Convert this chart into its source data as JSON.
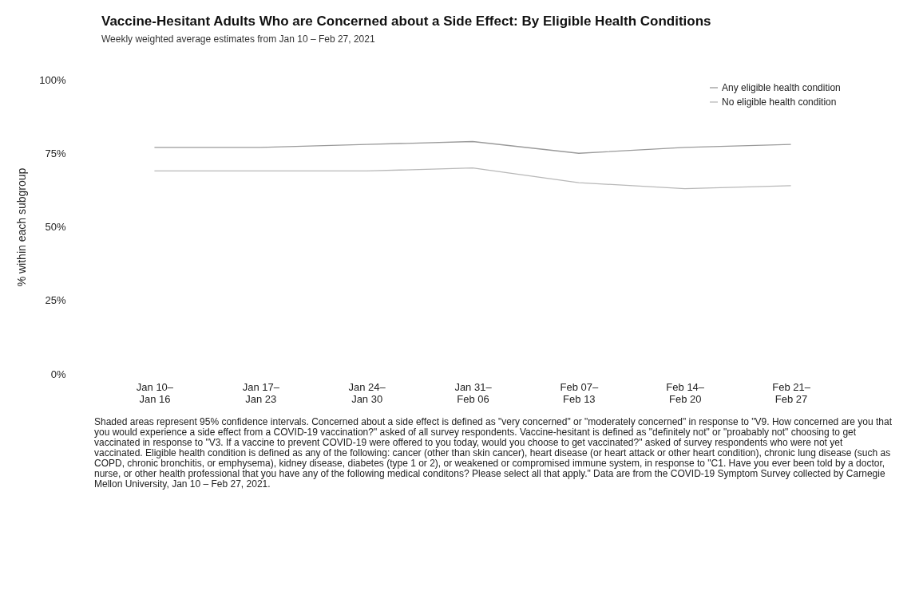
{
  "chart_data": {
    "type": "line",
    "title": "Vaccine-Hesitant Adults Who are Concerned about a Side Effect: By Eligible Health Conditions",
    "subtitle": "Weekly weighted average estimates from Jan 10 – Feb 27, 2021",
    "ylabel": "% within each subgroup",
    "categories": [
      "Jan 10–\nJan 16",
      "Jan 17–\nJan 23",
      "Jan 24–\nJan 30",
      "Jan 31–\nFeb 06",
      "Feb 07–\nFeb 13",
      "Feb 14–\nFeb 20",
      "Feb 21–\nFeb 27"
    ],
    "series": [
      {
        "name": "Any eligible health condition",
        "color": "#9a9a9a",
        "values": [
          77,
          77,
          78,
          79,
          75,
          77,
          78
        ]
      },
      {
        "name": "No eligible health condition",
        "color": "#b8b8b8",
        "values": [
          69,
          69,
          69,
          70,
          65,
          63,
          64
        ]
      }
    ],
    "ylim": [
      0,
      100
    ],
    "yticks": [
      {
        "value": 0,
        "label": "0%"
      },
      {
        "value": 25,
        "label": "25%"
      },
      {
        "value": 50,
        "label": "50%"
      },
      {
        "value": 75,
        "label": "75%"
      },
      {
        "value": 100,
        "label": "100%"
      }
    ],
    "grid": false,
    "legend": "top right",
    "annotations": [
      "Shaded areas represent 95% confidence intervals. Concerned about a side effect is defined as \"very concerned\" or \"moderately concerned\" in response to \"V9. How concerned are you that you would experience a side effect from a COVID-19 vaccination?\" asked of all survey respondents. Vaccine-hesitant is defined as \"definitely not\" or \"proabably not\" choosing to get vaccinated in response to \"V3. If a vaccine to prevent COVID-19 were offered to you today, would you choose to get vaccinated?\" asked of survey respondents who were not yet vaccinated. Eligible health condition is defined as any of the following: cancer (other than skin cancer), heart disease (or heart attack or other heart condition), chronic lung disease (such as COPD, chronic bronchitis, or emphysema), kidney disease, diabetes (type 1 or 2), or weakened or compromised immune system, in response to \"C1. Have you ever been told by a doctor, nurse, or other health professional that you have any of the following medical conditons? Please select all that apply.\" Data are from the COVID-19 Symptom Survey collected by Carnegie Mellon University, Jan 10 – Feb 27, 2021."
    ]
  }
}
